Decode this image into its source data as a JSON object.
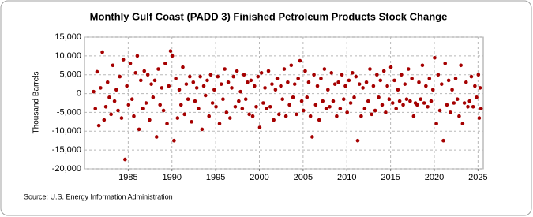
{
  "chart_data": {
    "type": "scatter",
    "title": "Monthly Gulf Coast (PADD 3) Finished Petroleum Products Stock Change",
    "y_label": "Thousand Barrels",
    "source": "Source: U.S. Energy Information Administration",
    "color": "#a50000",
    "grid": true,
    "xlim": [
      1980,
      2025.6
    ],
    "ylim": [
      -20000,
      15000
    ],
    "xticks": [
      1985,
      1990,
      1995,
      2000,
      2005,
      2010,
      2015,
      2020,
      2025
    ],
    "yticks": [
      {
        "value": -20000,
        "label": "-20,000"
      },
      {
        "value": -15000,
        "label": "-15,000"
      },
      {
        "value": -10000,
        "label": "-10,000"
      },
      {
        "value": -5000,
        "label": "-5,000"
      },
      0,
      {
        "value": 5000,
        "label": "5,000"
      },
      {
        "value": 10000,
        "label": "10,000"
      },
      {
        "value": 15000,
        "label": "15,000"
      }
    ],
    "x": [
      1981.04,
      1981.24,
      1981.44,
      1981.64,
      1981.84,
      1982.04,
      1982.24,
      1982.44,
      1982.64,
      1982.84,
      1983.04,
      1983.24,
      1983.44,
      1983.64,
      1983.84,
      1984.04,
      1984.24,
      1984.44,
      1984.64,
      1984.84,
      1985.04,
      1985.24,
      1985.44,
      1985.64,
      1985.84,
      1986.04,
      1986.24,
      1986.44,
      1986.64,
      1986.84,
      1987.04,
      1987.24,
      1987.44,
      1987.64,
      1987.84,
      1988.04,
      1988.24,
      1988.44,
      1988.64,
      1988.84,
      1989.04,
      1989.24,
      1989.44,
      1989.64,
      1989.84,
      1990.04,
      1990.24,
      1990.44,
      1990.64,
      1990.84,
      1991.04,
      1991.24,
      1991.44,
      1991.64,
      1991.84,
      1992.04,
      1992.24,
      1992.44,
      1992.64,
      1992.84,
      1993.04,
      1993.24,
      1993.44,
      1993.64,
      1993.84,
      1994.04,
      1994.24,
      1994.44,
      1994.64,
      1994.84,
      1995.04,
      1995.24,
      1995.44,
      1995.64,
      1995.84,
      1996.04,
      1996.24,
      1996.44,
      1996.64,
      1996.84,
      1997.04,
      1997.24,
      1997.44,
      1997.64,
      1997.84,
      1998.04,
      1998.24,
      1998.44,
      1998.64,
      1998.84,
      1999.04,
      1999.24,
      1999.44,
      1999.64,
      1999.84,
      2000.04,
      2000.24,
      2000.44,
      2000.64,
      2000.84,
      2001.04,
      2001.24,
      2001.44,
      2001.64,
      2001.84,
      2002.04,
      2002.24,
      2002.44,
      2002.64,
      2002.84,
      2003.04,
      2003.24,
      2003.44,
      2003.64,
      2003.84,
      2004.04,
      2004.24,
      2004.44,
      2004.64,
      2004.84,
      2005.04,
      2005.24,
      2005.44,
      2005.64,
      2005.84,
      2006.04,
      2006.24,
      2006.44,
      2006.64,
      2006.84,
      2007.04,
      2007.24,
      2007.44,
      2007.64,
      2007.84,
      2008.04,
      2008.24,
      2008.44,
      2008.64,
      2008.84,
      2009.04,
      2009.24,
      2009.44,
      2009.64,
      2009.84,
      2010.04,
      2010.24,
      2010.44,
      2010.64,
      2010.84,
      2011.04,
      2011.24,
      2011.44,
      2011.64,
      2011.84,
      2012.04,
      2012.24,
      2012.44,
      2012.64,
      2012.84,
      2013.04,
      2013.24,
      2013.44,
      2013.64,
      2013.84,
      2014.04,
      2014.24,
      2014.44,
      2014.64,
      2014.84,
      2015.04,
      2015.24,
      2015.44,
      2015.64,
      2015.84,
      2016.04,
      2016.24,
      2016.44,
      2016.64,
      2016.84,
      2017.04,
      2017.24,
      2017.44,
      2017.64,
      2017.84,
      2018.04,
      2018.24,
      2018.44,
      2018.64,
      2018.84,
      2019.04,
      2019.24,
      2019.44,
      2019.64,
      2019.84,
      2020.04,
      2020.24,
      2020.44,
      2020.64,
      2020.84,
      2021.04,
      2021.24,
      2021.44,
      2021.64,
      2021.84,
      2022.04,
      2022.24,
      2022.44,
      2022.64,
      2022.84,
      2023.04,
      2023.24,
      2023.44,
      2023.64,
      2023.84,
      2024.04,
      2024.24,
      2024.44,
      2024.64,
      2024.84,
      2025.04,
      2025.14,
      2025.24,
      2025.34
    ],
    "values": [
      500,
      -4000,
      5800,
      -8500,
      1500,
      11000,
      -7000,
      -3500,
      3000,
      -1000,
      -5500,
      7500,
      -2000,
      1000,
      -4500,
      4500,
      -6500,
      9000,
      -17500,
      2000,
      -3000,
      8000,
      -1500,
      -6000,
      5500,
      10000,
      -9500,
      3500,
      -4000,
      6000,
      -2500,
      5000,
      -7000,
      2500,
      -1000,
      3500,
      -11500,
      6500,
      -3000,
      1500,
      -4500,
      8000,
      -8000,
      2000,
      11300,
      10000,
      -12500,
      4000,
      -6500,
      1000,
      -3000,
      7000,
      -5500,
      2500,
      -1500,
      4500,
      -7500,
      3000,
      -2000,
      1500,
      -4000,
      4500,
      -9500,
      2000,
      -500,
      3500,
      -6000,
      5000,
      -2500,
      1000,
      -3500,
      4500,
      -8000,
      2500,
      -1500,
      6500,
      -5000,
      3000,
      -6500,
      1500,
      4500,
      -3500,
      6000,
      -2000,
      500,
      -4000,
      5000,
      -1500,
      3000,
      -5500,
      3500,
      -6000,
      2000,
      -3500,
      4500,
      -9000,
      5500,
      -2500,
      1500,
      -4000,
      6000,
      -3500,
      2500,
      -7000,
      1000,
      4000,
      -5500,
      2000,
      -1500,
      6500,
      -6000,
      3000,
      -3000,
      7500,
      -1000,
      2500,
      -5500,
      4000,
      8700,
      -2000,
      -4500,
      6000,
      -1000,
      3000,
      -6000,
      -11500,
      5000,
      -3000,
      2000,
      -7000,
      4000,
      -2000,
      6500,
      -4000,
      1000,
      -3500,
      5500,
      -2000,
      2500,
      -6000,
      3000,
      -4000,
      5000,
      -1500,
      2000,
      -5000,
      3500,
      -2500,
      5500,
      -1000,
      4500,
      -12500,
      2500,
      -6000,
      1500,
      -4000,
      3000,
      -2000,
      6500,
      -5500,
      2000,
      -4500,
      5000,
      -1000,
      3500,
      -3000,
      6000,
      -5000,
      2000,
      -1500,
      7000,
      -2500,
      3500,
      -4000,
      1000,
      -2000,
      5000,
      -3000,
      2500,
      -1500,
      6500,
      -2000,
      4000,
      -6000,
      -2500,
      -3000,
      3000,
      -1500,
      7500,
      -2500,
      2000,
      -3500,
      4000,
      -2000,
      1000,
      9500,
      -8000,
      5000,
      -4500,
      2500,
      -12500,
      8000,
      -3000,
      3500,
      -5000,
      1000,
      -2500,
      4000,
      -1500,
      -6000,
      7500,
      -8000,
      -2500,
      3000,
      -3500,
      -2000,
      4500,
      -3500,
      2000,
      -1000,
      5000,
      -6500,
      1500,
      -4000
    ]
  }
}
